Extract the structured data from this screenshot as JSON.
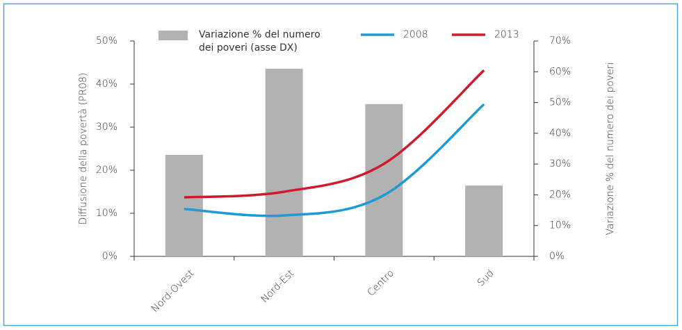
{
  "chart_data": {
    "type": "bar-line",
    "categories": [
      "Nord-Ovest",
      "Nord-Est",
      "Centro",
      "Sud"
    ],
    "ylabel": "Diffusione della povertà (PR08)",
    "y2label": "Variazione % del numero dei poveri",
    "ylim": [
      0,
      50
    ],
    "yticks": [
      {
        "value": 0,
        "label": "0%"
      },
      {
        "value": 10,
        "label": "10%"
      },
      {
        "value": 20,
        "label": "20%"
      },
      {
        "value": 30,
        "label": "30%"
      },
      {
        "value": 40,
        "label": "40%"
      },
      {
        "value": 50,
        "label": "50%"
      }
    ],
    "y2lim": [
      0,
      70
    ],
    "y2ticks": [
      {
        "value": 0,
        "label": "0%"
      },
      {
        "value": 10,
        "label": "10%"
      },
      {
        "value": 20,
        "label": "20%"
      },
      {
        "value": 30,
        "label": "30%"
      },
      {
        "value": 40,
        "label": "40%"
      },
      {
        "value": 50,
        "label": "50%"
      },
      {
        "value": 60,
        "label": "60%"
      },
      {
        "value": 70,
        "label": "70%"
      }
    ],
    "series": [
      {
        "name": "Variazione % del numero dei poveri (asse DX)",
        "type": "bar",
        "axis": "y2",
        "color": "#b2b2b2",
        "values": [
          33,
          61,
          49.5,
          23
        ]
      },
      {
        "name": "2008",
        "type": "line",
        "color": "#1d9ad6",
        "values": [
          11,
          9.5,
          14.2,
          35.3
        ]
      },
      {
        "name": "2013",
        "type": "line",
        "color": "#d2192b",
        "values": [
          13.7,
          15,
          21.5,
          43.2
        ]
      }
    ]
  }
}
